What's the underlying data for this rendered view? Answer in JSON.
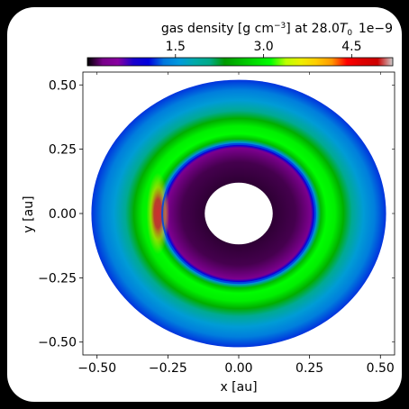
{
  "chart_data": {
    "type": "heatmap",
    "plot_kind": "polar disk density map",
    "colorbar": {
      "label": "gas density [g cm⁻³] at 28.0T₀",
      "scale_note": "1e−9",
      "ticks": [
        "1.5",
        "3.0",
        "4.5"
      ],
      "tick_values": [
        1.5,
        3.0,
        4.5
      ],
      "range": [
        0.0,
        5.2
      ],
      "colormap": "nipy_spectral",
      "placement": "top"
    },
    "xlabel": "x [au]",
    "ylabel": "y [au]",
    "xlim": [
      -0.55,
      0.55
    ],
    "ylim": [
      -0.55,
      0.55
    ],
    "xticks": [
      "−0.50",
      "−0.25",
      "0.00",
      "0.25",
      "0.50"
    ],
    "yticks": [
      "0.50",
      "0.25",
      "0.00",
      "−0.25",
      "−0.50"
    ],
    "xtick_values": [
      -0.5,
      -0.25,
      0.0,
      0.25,
      0.5
    ],
    "ytick_values": [
      0.5,
      0.25,
      0.0,
      -0.25,
      -0.5
    ],
    "disk": {
      "inner_radius_au": 0.12,
      "outer_radius_au": 0.52,
      "cavity_edge_au": 0.27
    },
    "radial_profile": [
      {
        "r_au": 0.12,
        "density": 0.1
      },
      {
        "r_au": 0.2,
        "density": 0.15
      },
      {
        "r_au": 0.255,
        "density": 0.35
      },
      {
        "r_au": 0.265,
        "density": 1.0
      },
      {
        "r_au": 0.275,
        "density": 1.5
      },
      {
        "r_au": 0.29,
        "density": 2.6
      },
      {
        "r_au": 0.31,
        "density": 3.1
      },
      {
        "r_au": 0.34,
        "density": 3.0
      },
      {
        "r_au": 0.37,
        "density": 2.5
      },
      {
        "r_au": 0.4,
        "density": 2.0
      },
      {
        "r_au": 0.44,
        "density": 1.6
      },
      {
        "r_au": 0.48,
        "density": 1.35
      },
      {
        "r_au": 0.52,
        "density": 1.15
      }
    ],
    "features": [
      {
        "kind": "vortex",
        "angle_deg": 180,
        "r_au": 0.285,
        "peak_density": 5.0
      }
    ]
  }
}
